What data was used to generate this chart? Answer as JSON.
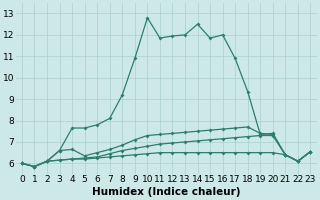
{
  "xlabel": "Humidex (Indice chaleur)",
  "x_values": [
    0,
    1,
    2,
    3,
    4,
    5,
    6,
    7,
    8,
    9,
    10,
    11,
    12,
    13,
    14,
    15,
    16,
    17,
    18,
    19,
    20,
    21,
    22,
    23
  ],
  "line1": [
    6.0,
    5.85,
    6.1,
    6.15,
    6.2,
    6.2,
    6.25,
    6.3,
    6.35,
    6.4,
    6.45,
    6.5,
    6.5,
    6.5,
    6.5,
    6.5,
    6.5,
    6.5,
    6.5,
    6.5,
    6.5,
    6.4,
    6.1,
    6.55
  ],
  "line2": [
    6.0,
    5.85,
    6.1,
    6.15,
    6.2,
    6.25,
    6.3,
    6.45,
    6.6,
    6.7,
    6.8,
    6.9,
    6.95,
    7.0,
    7.05,
    7.1,
    7.15,
    7.2,
    7.25,
    7.3,
    7.3,
    6.4,
    6.1,
    6.55
  ],
  "line3": [
    6.0,
    5.85,
    6.1,
    6.6,
    6.65,
    6.35,
    6.5,
    6.65,
    6.85,
    7.1,
    7.3,
    7.35,
    7.4,
    7.45,
    7.5,
    7.55,
    7.6,
    7.65,
    7.7,
    7.4,
    7.35,
    6.4,
    6.1,
    6.55
  ],
  "line4": [
    6.0,
    5.85,
    6.1,
    6.6,
    7.65,
    7.65,
    7.8,
    8.1,
    9.2,
    10.9,
    12.8,
    11.85,
    11.95,
    12.0,
    12.5,
    11.85,
    12.0,
    10.9,
    9.35,
    7.35,
    7.4,
    6.4,
    6.1,
    6.55
  ],
  "line_color": "#2e7d6e",
  "bg_color": "#cde8e8",
  "grid_color": "#aacfcf",
  "ylim": [
    5.5,
    13.5
  ],
  "yticks": [
    6,
    7,
    8,
    9,
    10,
    11,
    12,
    13
  ],
  "tick_fontsize": 6.5,
  "label_fontsize": 7.5
}
